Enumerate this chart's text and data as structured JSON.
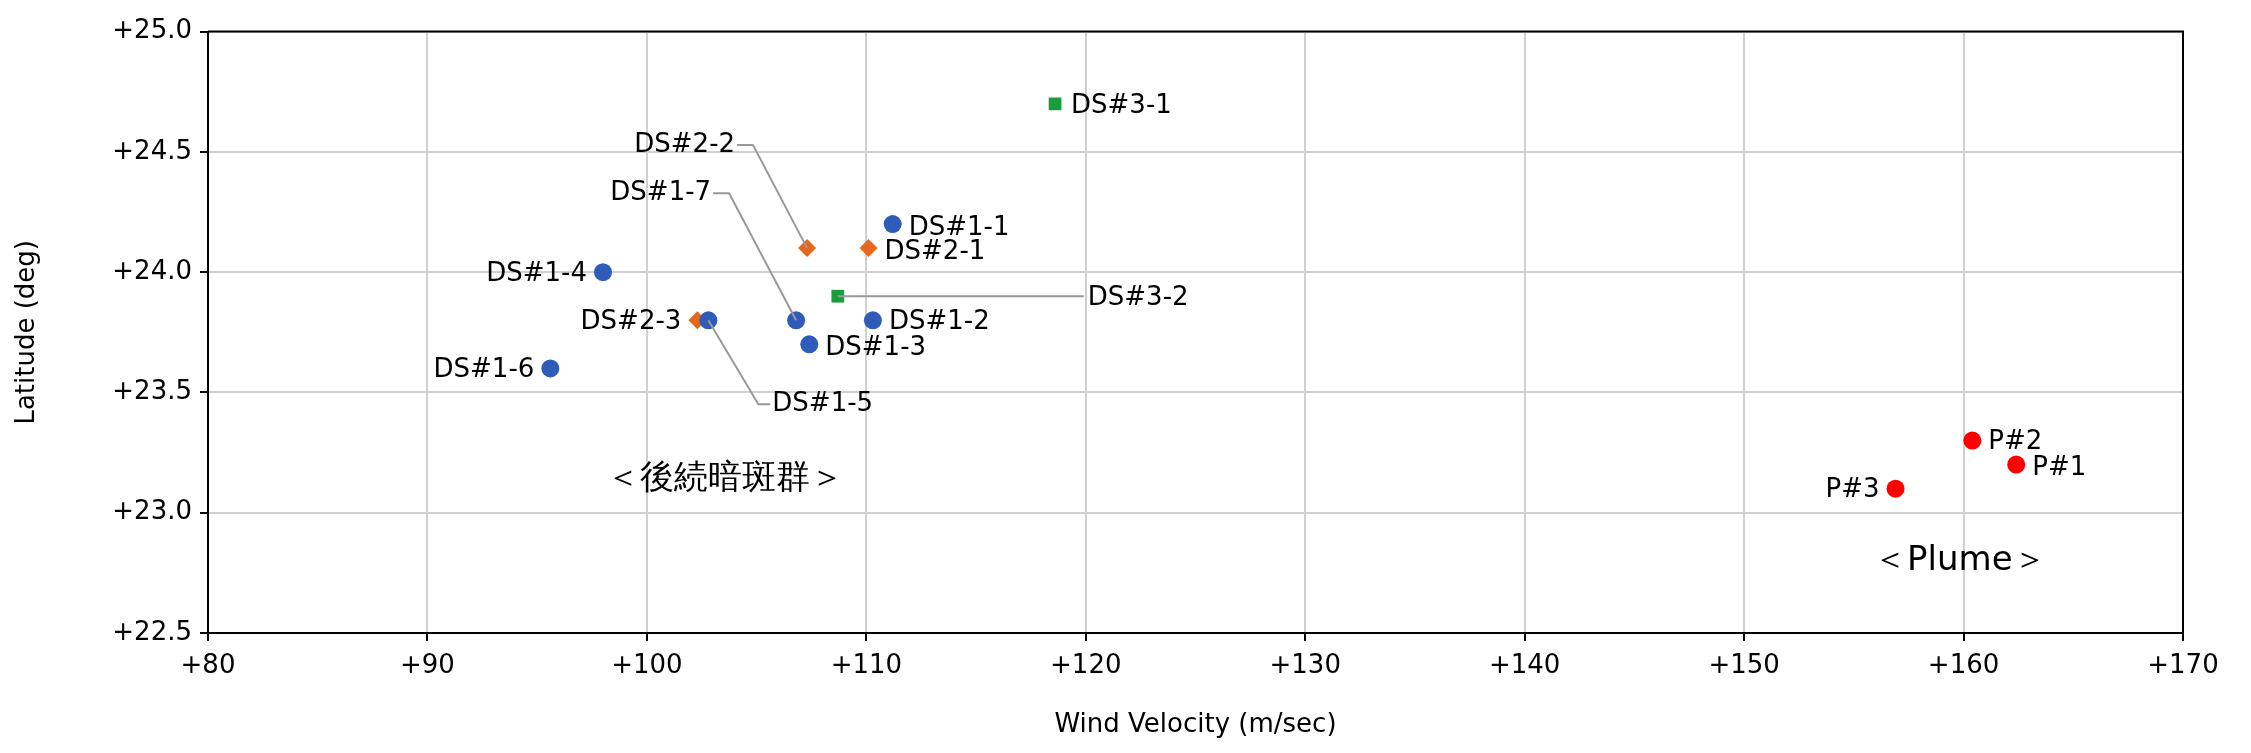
{
  "chart_data": {
    "type": "scatter",
    "xlabel": "Wind Velocity (m/sec)",
    "ylabel": "Latitude (deg)",
    "xlim": [
      80,
      170
    ],
    "xticks": [
      {
        "value": 80,
        "label": "+80"
      },
      {
        "value": 90,
        "label": "+90"
      },
      {
        "value": 100,
        "label": "+100"
      },
      {
        "value": 110,
        "label": "+110"
      },
      {
        "value": 120,
        "label": "+120"
      },
      {
        "value": 130,
        "label": "+130"
      },
      {
        "value": 140,
        "label": "+140"
      },
      {
        "value": 150,
        "label": "+150"
      },
      {
        "value": 160,
        "label": "+160"
      },
      {
        "value": 170,
        "label": "+170"
      }
    ],
    "ylim": [
      22.5,
      25
    ],
    "yticks": [
      {
        "value": 22.5,
        "label": "+22.5"
      },
      {
        "value": 23,
        "label": "+23.0"
      },
      {
        "value": 23.5,
        "label": "+23.5"
      },
      {
        "value": 24,
        "label": "+24.0"
      },
      {
        "value": 24.5,
        "label": "+24.5"
      },
      {
        "value": 25,
        "label": "+25.0"
      }
    ],
    "grid": true,
    "legend": false,
    "series": [
      {
        "color": "#2e5cb8",
        "marker": "circle",
        "x": [
          111.2,
          110.3,
          107.4,
          98.0,
          102.8,
          95.6,
          106.8
        ],
        "values": [
          24.2,
          23.8,
          23.7,
          24.0,
          23.8,
          23.6,
          23.8
        ]
      },
      {
        "color": "#e8681b",
        "marker": "diamond",
        "x": [
          110.1,
          107.3,
          102.3
        ],
        "values": [
          24.1,
          24.1,
          23.8
        ]
      },
      {
        "color": "#1a9e3a",
        "marker": "square",
        "x": [
          118.6,
          108.7
        ],
        "values": [
          24.7,
          23.9
        ]
      },
      {
        "color": "#ff0000",
        "marker": "circle",
        "x": [
          162.4,
          160.4,
          156.9
        ],
        "values": [
          23.2,
          23.3,
          23.1
        ]
      }
    ],
    "annotations": [
      {
        "text": "DS#1-1",
        "x": 111.2,
        "y": 24.2
      },
      {
        "text": "DS#1-2",
        "x": 110.3,
        "y": 23.8
      },
      {
        "text": "DS#1-3",
        "x": 107.4,
        "y": 23.7
      },
      {
        "text": "DS#1-4",
        "x": 98.0,
        "y": 24.0
      },
      {
        "text": "DS#1-5",
        "x": 102.8,
        "y": 23.8
      },
      {
        "text": "DS#1-6",
        "x": 95.6,
        "y": 23.6
      },
      {
        "text": "DS#1-7",
        "x": 106.8,
        "y": 23.8
      },
      {
        "text": "DS#2-1",
        "x": 110.1,
        "y": 24.1
      },
      {
        "text": "DS#2-2",
        "x": 107.3,
        "y": 24.1
      },
      {
        "text": "DS#2-3",
        "x": 102.3,
        "y": 23.8
      },
      {
        "text": "DS#3-1",
        "x": 118.6,
        "y": 24.7
      },
      {
        "text": "DS#3-2",
        "x": 108.7,
        "y": 23.9
      },
      {
        "text": "P#1",
        "x": 162.4,
        "y": 23.2
      },
      {
        "text": "P#2",
        "x": 160.4,
        "y": 23.3
      },
      {
        "text": "P#3",
        "x": 156.9,
        "y": 23.1
      },
      "＜後続暗斑群＞",
      "＜Plume＞"
    ]
  }
}
